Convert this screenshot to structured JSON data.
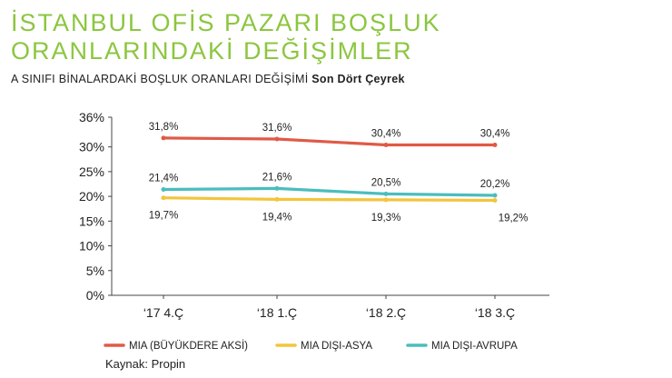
{
  "header": {
    "title": "İSTANBUL OFİS PAZARI BOŞLUK ORANLARINDAKİ DEĞİŞİMLER",
    "subtitle_main": "A SINIFI BİNALARDAKİ BOŞLUK ORANLARI DEĞİŞİMİ",
    "subtitle_bold": "Son Dört Çeyrek"
  },
  "source": "Kaynak: Propin",
  "chart_data": {
    "type": "line",
    "categories": [
      "‘17 4.Ç",
      "‘18 1.Ç",
      "‘18 2.Ç",
      "‘18 3.Ç"
    ],
    "y_ticks": [
      "0%",
      "5%",
      "10%",
      "15%",
      "20%",
      "25%",
      "30%",
      "36%"
    ],
    "y_tick_values": [
      0,
      5,
      10,
      15,
      20,
      25,
      30,
      36
    ],
    "ylim": [
      0,
      36
    ],
    "grid": false,
    "legend_position": "bottom",
    "series": [
      {
        "name": "MIA (BÜYÜKDERE AKSİ)",
        "color": "#e05a47",
        "values": [
          31.8,
          31.6,
          30.4,
          30.4
        ],
        "labels": [
          "31,8%",
          "31,6%",
          "30,4%",
          "30,4%"
        ],
        "label_side": "above"
      },
      {
        "name": "MIA DIŞI-ASYA",
        "color": "#f2c53d",
        "values": [
          19.7,
          19.4,
          19.3,
          19.2
        ],
        "labels": [
          "19,7%",
          "19,4%",
          "19,3%",
          "19,2%"
        ],
        "label_side": "below"
      },
      {
        "name": "MIA DIŞI-AVRUPA",
        "color": "#4bbdbd",
        "values": [
          21.4,
          21.6,
          20.5,
          20.2
        ],
        "labels": [
          "21,4%",
          "21,6%",
          "20,5%",
          "20,2%"
        ],
        "label_side": "above"
      }
    ]
  }
}
